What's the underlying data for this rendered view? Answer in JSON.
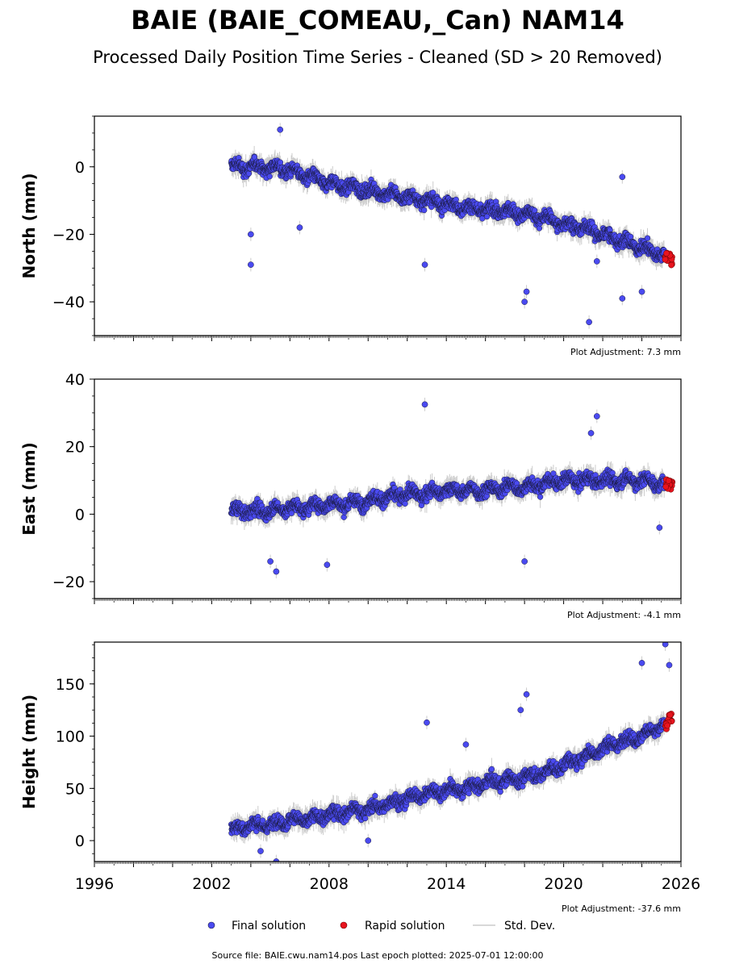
{
  "title": "BAIE (BAIE_COMEAU,_Can) NAM14",
  "subtitle": "Processed Daily Position Time Series - Cleaned (SD > 20 Removed)",
  "footer": "Source file: BAIE.cwu.nam14.pos  Last epoch plotted: 2025-07-01 12:00:00",
  "legend": {
    "final": "Final solution",
    "rapid": "Rapid solution",
    "stddev": "Std. Dev."
  },
  "colors": {
    "final": "#4a4af0",
    "rapid": "#e8141e",
    "stddev": "#cccccc",
    "outline": "#1a1a40"
  },
  "chart_data": [
    {
      "type": "scatter",
      "ylabel": "North (mm)",
      "adjustment": "Plot Adjustment: 7.3 mm",
      "xlim": [
        1996,
        2026
      ],
      "ylim": [
        -50,
        15
      ],
      "yticks": [
        0,
        -20,
        -40
      ],
      "ytick_labels": [
        "0",
        "−20",
        "−40"
      ],
      "grid": false,
      "series": [
        {
          "name": "Final solution",
          "x": [
            2003.0,
            2004.0,
            2005.0,
            2006.0,
            2007.0,
            2008.0,
            2009.0,
            2010.0,
            2011.0,
            2012.0,
            2013.0,
            2014.0,
            2015.0,
            2016.0,
            2017.0,
            2018.0,
            2019.0,
            2020.0,
            2021.0,
            2022.0,
            2023.0,
            2024.0,
            2025.0
          ],
          "values": [
            0,
            0,
            0,
            -1,
            -3,
            -5,
            -6,
            -7,
            -8,
            -9,
            -10,
            -11,
            -12,
            -13,
            -13,
            -14,
            -15,
            -17,
            -18,
            -20,
            -22,
            -24,
            -26
          ]
        },
        {
          "name": "Rapid solution",
          "x": [
            2025.2,
            2025.35,
            2025.5
          ],
          "values": [
            -26,
            -27,
            -28
          ]
        }
      ],
      "outliers": {
        "x": [
          2004.0,
          2004.0,
          2005.5,
          2006.5,
          2012.9,
          2018.1,
          2018.0,
          2021.3,
          2021.7,
          2023.0,
          2023.0,
          2024.0
        ],
        "values": [
          -29,
          -20,
          11,
          -18,
          -29,
          -37,
          -40,
          -46,
          -28,
          -3,
          -39,
          -37
        ]
      }
    },
    {
      "type": "scatter",
      "ylabel": "East (mm)",
      "adjustment": "Plot Adjustment: -4.1 mm",
      "xlim": [
        1996,
        2026
      ],
      "ylim": [
        -25,
        40
      ],
      "yticks": [
        40,
        20,
        0,
        -20
      ],
      "ytick_labels": [
        "40",
        "20",
        "0",
        "−20"
      ],
      "grid": false,
      "series": [
        {
          "name": "Final solution",
          "x": [
            2003.0,
            2004.0,
            2005.0,
            2006.0,
            2007.0,
            2008.0,
            2009.0,
            2010.0,
            2011.0,
            2012.0,
            2013.0,
            2014.0,
            2015.0,
            2016.0,
            2017.0,
            2018.0,
            2019.0,
            2020.0,
            2021.0,
            2022.0,
            2023.0,
            2024.0,
            2025.0
          ],
          "values": [
            1,
            1,
            1,
            2,
            2,
            3,
            3,
            4,
            5,
            6,
            6,
            7,
            7,
            7,
            8,
            8,
            9,
            10,
            10,
            10,
            10,
            10,
            9
          ]
        },
        {
          "name": "Rapid solution",
          "x": [
            2025.2,
            2025.35,
            2025.5
          ],
          "values": [
            9,
            10,
            8
          ]
        }
      ],
      "outliers": {
        "x": [
          2012.9,
          2021.4,
          2021.7,
          2005.0,
          2005.3,
          2007.9,
          2018.0,
          2024.9
        ],
        "values": [
          32.5,
          24,
          29,
          -14,
          -17,
          -15,
          -14,
          -4
        ]
      }
    },
    {
      "type": "scatter",
      "ylabel": "Height (mm)",
      "adjustment": "Plot Adjustment: -37.6 mm",
      "xlim": [
        1996,
        2026
      ],
      "ylim": [
        -20,
        190
      ],
      "yticks": [
        150,
        100,
        50,
        0
      ],
      "ytick_labels": [
        "150",
        "100",
        "50",
        "0"
      ],
      "xticks": [
        1996,
        2002,
        2008,
        2014,
        2020,
        2026
      ],
      "xtick_labels": [
        "1996",
        "2002",
        "2008",
        "2014",
        "2020",
        "2026"
      ],
      "grid": false,
      "series": [
        {
          "name": "Final solution",
          "x": [
            2003.0,
            2004.0,
            2005.0,
            2006.0,
            2007.0,
            2008.0,
            2009.0,
            2010.0,
            2011.0,
            2012.0,
            2013.0,
            2014.0,
            2015.0,
            2016.0,
            2017.0,
            2018.0,
            2019.0,
            2020.0,
            2021.0,
            2022.0,
            2023.0,
            2024.0,
            2025.0
          ],
          "values": [
            10,
            15,
            15,
            20,
            20,
            25,
            28,
            30,
            35,
            40,
            45,
            48,
            50,
            55,
            58,
            60,
            65,
            72,
            80,
            88,
            95,
            100,
            110
          ]
        },
        {
          "name": "Rapid solution",
          "x": [
            2025.2,
            2025.35,
            2025.5
          ],
          "values": [
            110,
            115,
            118
          ]
        }
      ],
      "outliers": {
        "x": [
          2013.0,
          2017.8,
          2018.1,
          2024.0,
          2025.2,
          2025.4,
          2004.5,
          2005.3,
          2010.0,
          2015.0
        ],
        "values": [
          113,
          125,
          140,
          170,
          188,
          168,
          -10,
          -20,
          0,
          92
        ]
      }
    }
  ]
}
